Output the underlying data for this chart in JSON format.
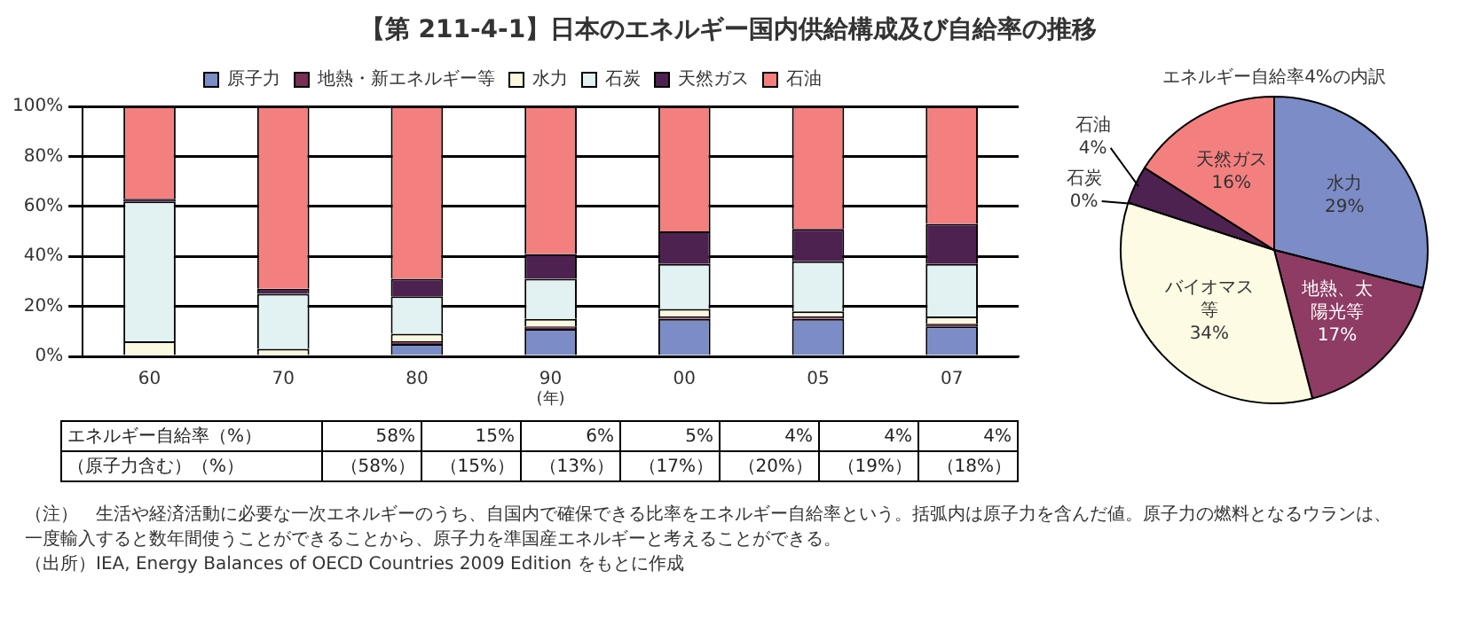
{
  "chart_data": [
    {
      "type": "bar",
      "title": "【第 211-4-1】日本のエネルギー国内供給構成及び自給率の推移",
      "xlabel": "(年)",
      "categories": [
        "60",
        "70",
        "80",
        "90",
        "00",
        "05",
        "07"
      ],
      "stacked": true,
      "series": [
        {
          "name": "原子力",
          "color": "#7b8cc6",
          "values": [
            0,
            0,
            5,
            11,
            15,
            15,
            12
          ]
        },
        {
          "name": "地熱・新エネルギー等",
          "color": "#7a2e52",
          "values": [
            0,
            0,
            1,
            1,
            1,
            1,
            1
          ]
        },
        {
          "name": "水力",
          "color": "#fbf8e0",
          "values": [
            6,
            3,
            3,
            3,
            3,
            2,
            3
          ]
        },
        {
          "name": "石炭",
          "color": "#e2f2f2",
          "values": [
            56,
            22,
            15,
            16,
            18,
            20,
            21
          ]
        },
        {
          "name": "天然ガス",
          "color": "#4e2250",
          "values": [
            1,
            2,
            7,
            10,
            13,
            13,
            16
          ]
        },
        {
          "name": "石油",
          "color": "#f47f7f",
          "values": [
            37,
            73,
            69,
            59,
            50,
            49,
            47
          ]
        }
      ],
      "ylim": [
        0,
        100
      ],
      "yticks": [
        {
          "value": 0,
          "label": "0%"
        },
        {
          "value": 20,
          "label": "20%"
        },
        {
          "value": 40,
          "label": "40%"
        },
        {
          "value": 60,
          "label": "60%"
        },
        {
          "value": 80,
          "label": "80%"
        },
        {
          "value": 100,
          "label": "100%"
        }
      ],
      "grid": "y",
      "legend": "top",
      "annotations": [
        "エネルギー自給率（%）",
        "58%",
        "15%",
        "6%",
        "5%",
        "4%",
        "4%",
        "4%",
        "（原子力含む）（%）",
        "（58%）",
        "（15%）",
        "（13%）",
        "（17%）",
        "（20%）",
        "（19%）",
        "（18%）",
        "（注）　生活や経済活動に必要な一次エネルギーのうち、自国内で確保できる比率をエネルギー自給率という。括弧内は原子力を含んだ値。原子力の燃料となるウランは、一度輸入すると数年間使うことができることから、原子力を準国産エネルギーと考えることができる。",
        "（出所）IEA, Energy Balances of OECD Countries 2009 Edition をもとに作成"
      ]
    },
    {
      "type": "pie",
      "title": "エネルギー自給率4%の内訳",
      "categories": [
        "水力",
        "地熱、太陽光等",
        "バイオマス等",
        "石炭",
        "石油",
        "天然ガス"
      ],
      "values": [
        29,
        17,
        34,
        0,
        4,
        16
      ],
      "value_labels": [
        "29%",
        "17%",
        "34%",
        "0%",
        "4%",
        "16%"
      ],
      "colors": [
        "#7b8cc6",
        "#8e3c63",
        "#fdfbe3",
        "#e2f2f2",
        "#4e2250",
        "#f47f7f"
      ],
      "legend": false
    }
  ]
}
